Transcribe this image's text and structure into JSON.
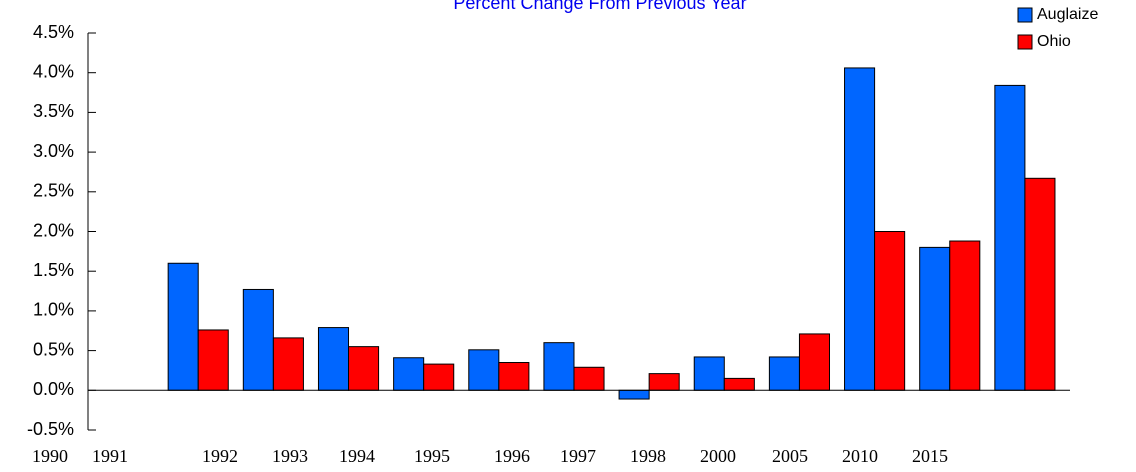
{
  "chart_data": {
    "type": "bar",
    "title": "Percent Change From Previous Year",
    "categories": [
      "1990",
      "1991",
      "1992",
      "1993",
      "1994",
      "1995",
      "1996",
      "1997",
      "1998",
      "2000",
      "2005",
      "2010",
      "2015"
    ],
    "series": [
      {
        "name": "Auglaize",
        "color": "#0066ff",
        "values": [
          null,
          1.6,
          1.27,
          0.79,
          0.41,
          0.51,
          0.6,
          -0.11,
          0.42,
          0.42,
          4.06,
          1.8,
          3.84
        ]
      },
      {
        "name": "Ohio",
        "color": "#ff0000",
        "values": [
          null,
          0.76,
          0.66,
          0.55,
          0.33,
          0.35,
          0.29,
          0.21,
          0.15,
          0.71,
          2.0,
          1.88,
          2.67
        ]
      }
    ],
    "ylim": [
      -0.5,
      4.5
    ],
    "yticks": [
      {
        "value": -0.5,
        "label": "-0.5%"
      },
      {
        "value": 0,
        "label": "0.0%"
      },
      {
        "value": 0.5,
        "label": "0.5%"
      },
      {
        "value": 1,
        "label": "1.0%"
      },
      {
        "value": 1.5,
        "label": "1.5%"
      },
      {
        "value": 2,
        "label": "2.0%"
      },
      {
        "value": 2.5,
        "label": "2.5%"
      },
      {
        "value": 3,
        "label": "3.0%"
      },
      {
        "value": 3.5,
        "label": "3.5%"
      },
      {
        "value": 4,
        "label": "4.0%"
      },
      {
        "value": 4.5,
        "label": "4.5%"
      }
    ],
    "legend": "top-right"
  }
}
